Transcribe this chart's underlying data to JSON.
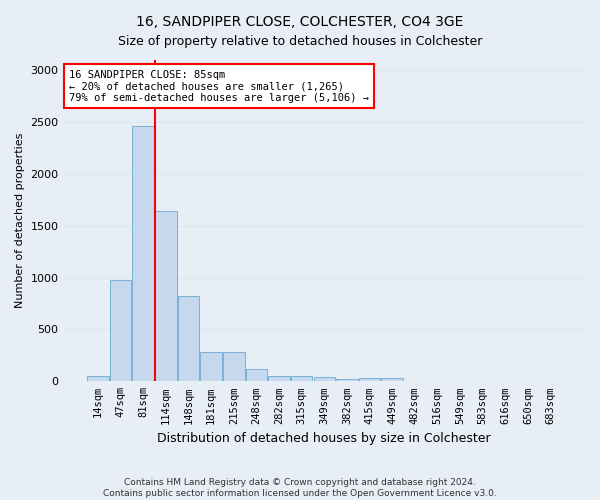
{
  "title1": "16, SANDPIPER CLOSE, COLCHESTER, CO4 3GE",
  "title2": "Size of property relative to detached houses in Colchester",
  "xlabel": "Distribution of detached houses by size in Colchester",
  "ylabel": "Number of detached properties",
  "footnote1": "Contains HM Land Registry data © Crown copyright and database right 2024.",
  "footnote2": "Contains public sector information licensed under the Open Government Licence v3.0.",
  "categories": [
    "14sqm",
    "47sqm",
    "81sqm",
    "114sqm",
    "148sqm",
    "181sqm",
    "215sqm",
    "248sqm",
    "282sqm",
    "315sqm",
    "349sqm",
    "382sqm",
    "415sqm",
    "449sqm",
    "482sqm",
    "516sqm",
    "549sqm",
    "583sqm",
    "616sqm",
    "650sqm",
    "683sqm"
  ],
  "values": [
    55,
    980,
    2460,
    1640,
    820,
    285,
    285,
    120,
    55,
    55,
    40,
    25,
    30,
    28,
    0,
    0,
    0,
    0,
    0,
    0,
    0
  ],
  "bar_color": "#c5d8ee",
  "bar_edge_color": "#6aaad4",
  "ylim": [
    0,
    3100
  ],
  "yticks": [
    0,
    500,
    1000,
    1500,
    2000,
    2500,
    3000
  ],
  "red_line_x": 2.5,
  "annotation_line1": "16 SANDPIPER CLOSE: 85sqm",
  "annotation_line2": "← 20% of detached houses are smaller (1,265)",
  "annotation_line3": "79% of semi-detached houses are larger (5,106) →",
  "annotation_box_color": "white",
  "annotation_box_edge": "red",
  "grid_color": "#dce6f0",
  "background_color": "#e8eef5",
  "title1_fontsize": 10,
  "title2_fontsize": 9,
  "xlabel_fontsize": 9,
  "ylabel_fontsize": 8,
  "annot_fontsize": 7.5,
  "tick_fontsize": 7.5,
  "ytick_fontsize": 8,
  "footnote_fontsize": 6.5
}
